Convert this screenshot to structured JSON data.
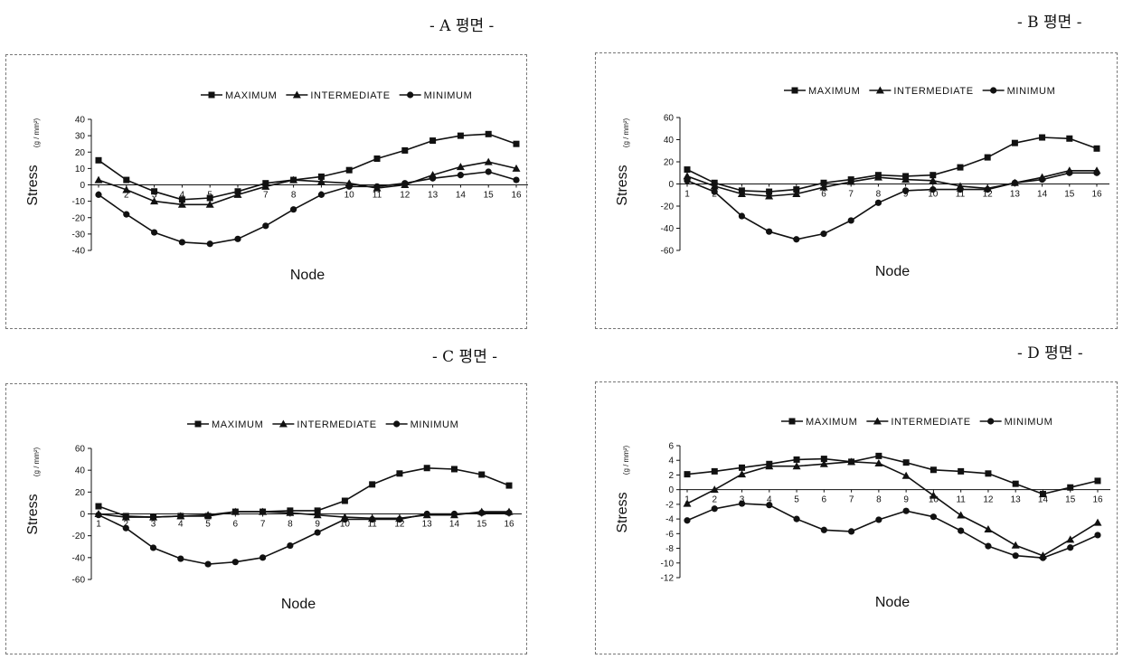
{
  "panels": [
    {
      "title": "- A 평면 -",
      "chart": {
        "type": "line",
        "xlabel": "Node",
        "ylabel": "Stress",
        "ylabel_unit": "(g / mm²)",
        "ylim": [
          -40,
          40
        ],
        "yticks": [
          40,
          30,
          20,
          10,
          0,
          -10,
          -20,
          -30,
          -40
        ],
        "categories": [
          "1",
          "2",
          "3",
          "4",
          "5",
          "6",
          "7",
          "8",
          "9",
          "10",
          "11",
          "12",
          "13",
          "14",
          "15",
          "16"
        ],
        "legend_position": "top-right",
        "series": [
          {
            "name": "MAXIMUM",
            "marker": "square",
            "values": [
              15,
              3,
              -4,
              -9,
              -8,
              -4,
              1,
              3,
              5,
              9,
              16,
              21,
              27,
              30,
              31,
              25
            ]
          },
          {
            "name": "INTERMEDIATE",
            "marker": "triangle",
            "values": [
              3,
              -3,
              -10,
              -12,
              -12,
              -6,
              -1,
              3,
              2,
              1,
              -2,
              0,
              6,
              11,
              14,
              10
            ]
          },
          {
            "name": "MINIMUM",
            "marker": "circle",
            "values": [
              -6,
              -18,
              -29,
              -35,
              -36,
              -33,
              -25,
              -15,
              -6,
              -1,
              -1,
              1,
              4,
              6,
              8,
              3
            ]
          }
        ]
      }
    },
    {
      "title": "- B 평면 -",
      "chart": {
        "type": "line",
        "xlabel": "Node",
        "ylabel": "Stress",
        "ylabel_unit": "(g / mm²)",
        "ylim": [
          -60,
          60
        ],
        "yticks": [
          60,
          40,
          20,
          0,
          -20,
          -40,
          -60
        ],
        "categories": [
          "1",
          "2",
          "3",
          "4",
          "5",
          "6",
          "7",
          "8",
          "9",
          "10",
          "11",
          "12",
          "13",
          "14",
          "15",
          "16"
        ],
        "legend_position": "top-right",
        "series": [
          {
            "name": "MAXIMUM",
            "marker": "square",
            "values": [
              13,
              1,
              -6,
              -7,
              -5,
              1,
              4,
              8,
              7,
              8,
              15,
              24,
              37,
              42,
              41,
              32
            ]
          },
          {
            "name": "INTERMEDIATE",
            "marker": "triangle",
            "values": [
              7,
              -2,
              -9,
              -11,
              -9,
              -3,
              2,
              6,
              4,
              3,
              -2,
              -4,
              1,
              6,
              12,
              12
            ]
          },
          {
            "name": "MINIMUM",
            "marker": "circle",
            "values": [
              3,
              -7,
              -29,
              -43,
              -50,
              -45,
              -33,
              -17,
              -6,
              -5,
              -5,
              -5,
              1,
              4,
              10,
              10
            ]
          }
        ]
      }
    },
    {
      "title": "- C 평면 -",
      "chart": {
        "type": "line",
        "xlabel": "Node",
        "ylabel": "Stress",
        "ylabel_unit": "(g / mm²)",
        "ylim": [
          -60,
          60
        ],
        "yticks": [
          60,
          40,
          20,
          0,
          -20,
          -40,
          -60
        ],
        "categories": [
          "1",
          "2",
          "3",
          "4",
          "5",
          "6",
          "7",
          "8",
          "9",
          "10",
          "11",
          "12",
          "13",
          "14",
          "15",
          "16"
        ],
        "legend_position": "top-right",
        "series": [
          {
            "name": "MAXIMUM",
            "marker": "square",
            "values": [
              7,
              -2,
              -3,
              -2,
              -2,
              2,
              2,
              3,
              3,
              12,
              27,
              37,
              42,
              41,
              36,
              26
            ]
          },
          {
            "name": "INTERMEDIATE",
            "marker": "triangle",
            "values": [
              0,
              -3,
              -3,
              -2,
              -1,
              2,
              2,
              1,
              -1,
              -3,
              -4,
              -4,
              -1,
              -1,
              2,
              2
            ]
          },
          {
            "name": "MINIMUM",
            "marker": "circle",
            "values": [
              -1,
              -13,
              -31,
              -41,
              -46,
              -44,
              -40,
              -29,
              -17,
              -5,
              -5,
              -5,
              0,
              0,
              1,
              1
            ]
          }
        ]
      }
    },
    {
      "title": "- D 평면 -",
      "chart": {
        "type": "line",
        "xlabel": "Node",
        "ylabel": "Stress",
        "ylabel_unit": "(g / mm²)",
        "ylim": [
          -12,
          6
        ],
        "yticks": [
          6,
          4,
          2,
          0,
          -2,
          -4,
          -6,
          -8,
          -10,
          -12
        ],
        "categories": [
          "1",
          "2",
          "3",
          "4",
          "5",
          "6",
          "7",
          "8",
          "9",
          "10",
          "11",
          "12",
          "13",
          "14",
          "15",
          "16"
        ],
        "legend_position": "top-right",
        "series": [
          {
            "name": "MAXIMUM",
            "marker": "square",
            "values": [
              2.1,
              2.5,
              3.0,
              3.5,
              4.1,
              4.2,
              3.8,
              4.6,
              3.7,
              2.7,
              2.5,
              2.2,
              0.8,
              -0.6,
              0.3,
              1.2
            ]
          },
          {
            "name": "INTERMEDIATE",
            "marker": "triangle",
            "values": [
              -1.9,
              0.0,
              2.1,
              3.2,
              3.2,
              3.5,
              3.8,
              3.6,
              1.9,
              -0.8,
              -3.5,
              -5.4,
              -7.6,
              -9.0,
              -6.8,
              -4.5
            ]
          },
          {
            "name": "MINIMUM",
            "marker": "circle",
            "values": [
              -4.2,
              -2.6,
              -1.9,
              -2.1,
              -4.0,
              -5.5,
              -5.7,
              -4.1,
              -2.9,
              -3.7,
              -5.6,
              -7.7,
              -9.0,
              -9.3,
              -7.9,
              -6.2
            ]
          }
        ]
      }
    }
  ],
  "chart_data": [
    {
      "type": "line",
      "title": "- A 평면 -",
      "xlabel": "Node",
      "ylabel": "Stress (g / mm²)",
      "ylim": [
        -40,
        40
      ],
      "x": [
        1,
        2,
        3,
        4,
        5,
        6,
        7,
        8,
        9,
        10,
        11,
        12,
        13,
        14,
        15,
        16
      ],
      "series": [
        {
          "name": "MAXIMUM",
          "values": [
            15,
            3,
            -4,
            -9,
            -8,
            -4,
            1,
            3,
            5,
            9,
            16,
            21,
            27,
            30,
            31,
            25
          ]
        },
        {
          "name": "INTERMEDIATE",
          "values": [
            3,
            -3,
            -10,
            -12,
            -12,
            -6,
            -1,
            3,
            2,
            1,
            -2,
            0,
            6,
            11,
            14,
            10
          ]
        },
        {
          "name": "MINIMUM",
          "values": [
            -6,
            -18,
            -29,
            -35,
            -36,
            -33,
            -25,
            -15,
            -6,
            -1,
            -1,
            1,
            4,
            6,
            8,
            3
          ]
        }
      ]
    },
    {
      "type": "line",
      "title": "- B 평면 -",
      "xlabel": "Node",
      "ylabel": "Stress (g / mm²)",
      "ylim": [
        -60,
        60
      ],
      "x": [
        1,
        2,
        3,
        4,
        5,
        6,
        7,
        8,
        9,
        10,
        11,
        12,
        13,
        14,
        15,
        16
      ],
      "series": [
        {
          "name": "MAXIMUM",
          "values": [
            13,
            1,
            -6,
            -7,
            -5,
            1,
            4,
            8,
            7,
            8,
            15,
            24,
            37,
            42,
            41,
            32
          ]
        },
        {
          "name": "INTERMEDIATE",
          "values": [
            7,
            -2,
            -9,
            -11,
            -9,
            -3,
            2,
            6,
            4,
            3,
            -2,
            -4,
            1,
            6,
            12,
            12
          ]
        },
        {
          "name": "MINIMUM",
          "values": [
            3,
            -7,
            -29,
            -43,
            -50,
            -45,
            -33,
            -17,
            -6,
            -5,
            -5,
            -5,
            1,
            4,
            10,
            10
          ]
        }
      ]
    },
    {
      "type": "line",
      "title": "- C 평면 -",
      "xlabel": "Node",
      "ylabel": "Stress (g / mm²)",
      "ylim": [
        -60,
        60
      ],
      "x": [
        1,
        2,
        3,
        4,
        5,
        6,
        7,
        8,
        9,
        10,
        11,
        12,
        13,
        14,
        15,
        16
      ],
      "series": [
        {
          "name": "MAXIMUM",
          "values": [
            7,
            -2,
            -3,
            -2,
            -2,
            2,
            2,
            3,
            3,
            12,
            27,
            37,
            42,
            41,
            36,
            26
          ]
        },
        {
          "name": "INTERMEDIATE",
          "values": [
            0,
            -3,
            -3,
            -2,
            -1,
            2,
            2,
            1,
            -1,
            -3,
            -4,
            -4,
            -1,
            -1,
            2,
            2
          ]
        },
        {
          "name": "MINIMUM",
          "values": [
            -1,
            -13,
            -31,
            -41,
            -46,
            -44,
            -40,
            -29,
            -17,
            -5,
            -5,
            -5,
            0,
            0,
            1,
            1
          ]
        }
      ]
    },
    {
      "type": "line",
      "title": "- D 평면 -",
      "xlabel": "Node",
      "ylabel": "Stress (g / mm²)",
      "ylim": [
        -12,
        6
      ],
      "x": [
        1,
        2,
        3,
        4,
        5,
        6,
        7,
        8,
        9,
        10,
        11,
        12,
        13,
        14,
        15,
        16
      ],
      "series": [
        {
          "name": "MAXIMUM",
          "values": [
            2.1,
            2.5,
            3.0,
            3.5,
            4.1,
            4.2,
            3.8,
            4.6,
            3.7,
            2.7,
            2.5,
            2.2,
            0.8,
            -0.6,
            0.3,
            1.2
          ]
        },
        {
          "name": "INTERMEDIATE",
          "values": [
            -1.9,
            0.0,
            2.1,
            3.2,
            3.2,
            3.5,
            3.8,
            3.6,
            1.9,
            -0.8,
            -3.5,
            -5.4,
            -7.6,
            -9.0,
            -6.8,
            -4.5
          ]
        },
        {
          "name": "MINIMUM",
          "values": [
            -4.2,
            -2.6,
            -1.9,
            -2.1,
            -4.0,
            -5.5,
            -5.7,
            -4.1,
            -2.9,
            -3.7,
            -5.6,
            -7.7,
            -9.0,
            -9.3,
            -7.9,
            -6.2
          ]
        }
      ]
    }
  ]
}
